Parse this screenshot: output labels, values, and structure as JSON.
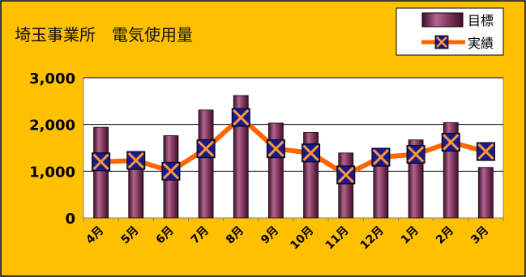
{
  "chart_data": {
    "type": "bar",
    "title": "埼玉事業所　電気使用量",
    "xlabel": "",
    "ylabel": "",
    "categories": [
      "4月",
      "5月",
      "6月",
      "7月",
      "8月",
      "9月",
      "10月",
      "11月",
      "12月",
      "1月",
      "2月",
      "3月"
    ],
    "ylim": [
      0,
      3000
    ],
    "yticks": [
      0,
      1000,
      2000,
      3000
    ],
    "ytick_labels": [
      "0",
      "1,000",
      "2,000",
      "3,000"
    ],
    "grid": true,
    "legend_position": "top-right",
    "series": [
      {
        "name": "目標",
        "type": "bar",
        "color": "#6e2a4e",
        "values": [
          1940,
          1220,
          1760,
          2310,
          2620,
          2030,
          1830,
          1390,
          1270,
          1670,
          2040,
          1080
        ]
      },
      {
        "name": "実績",
        "type": "line",
        "color": "#ff6600",
        "marker_color": "#1a1a8c",
        "values": [
          1200,
          1230,
          1000,
          1480,
          2150,
          1480,
          1390,
          920,
          1300,
          1360,
          1620,
          1420
        ]
      }
    ],
    "colors": {
      "background": "#ffc000",
      "plot_background": "#ffffff",
      "bar": "#6e2a4e",
      "line": "#ff6600",
      "marker": "#1a1a8c"
    }
  }
}
